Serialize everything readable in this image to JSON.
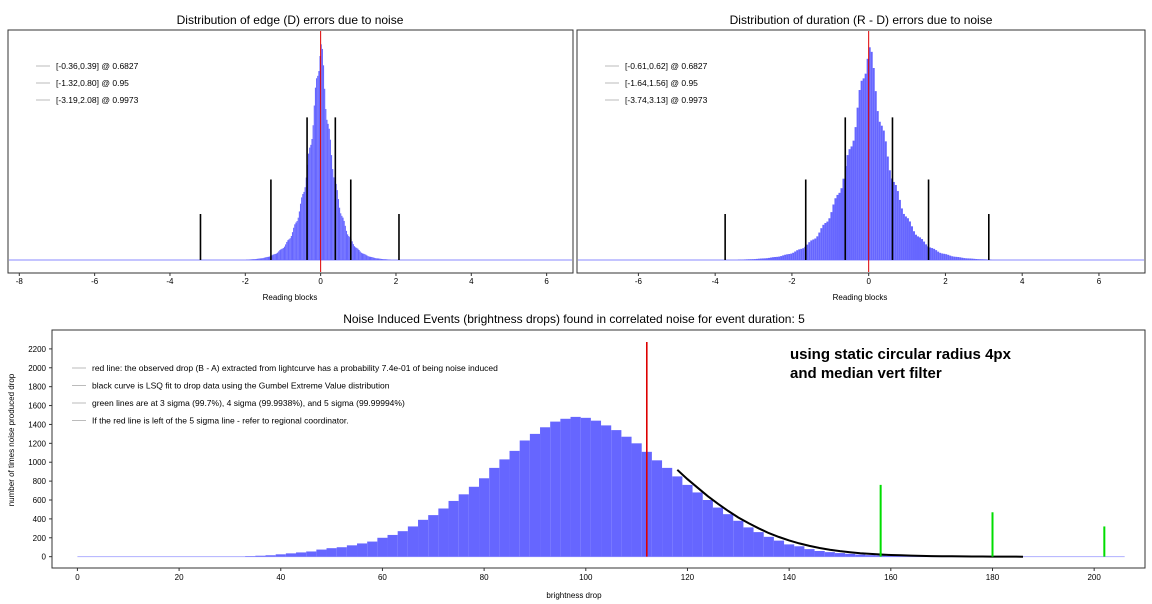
{
  "chart_data": [
    {
      "type": "bar",
      "title": "Distribution of edge (D) errors due to noise",
      "xlabel": "Reading blocks",
      "ylabel": "",
      "xlim": [
        -8.3,
        6.7
      ],
      "xticks": [
        -8,
        -6,
        -4,
        -2,
        0,
        2,
        4,
        6
      ],
      "histogram": {
        "center": 0.0,
        "spread": 0.36,
        "color": "#6666ff"
      },
      "observed_line": 0.0,
      "intervals": [
        {
          "label": "[-0.36,0.39] @ 0.6827",
          "lo": -0.36,
          "hi": 0.39,
          "level": 0.6827
        },
        {
          "label": "[-1.32,0.80] @ 0.95",
          "lo": -1.32,
          "hi": 0.8,
          "level": 0.95
        },
        {
          "label": "[-3.19,2.08] @ 0.9973",
          "lo": -3.19,
          "hi": 2.08,
          "level": 0.9973
        }
      ],
      "legend_position": "top-left"
    },
    {
      "type": "bar",
      "title": "Distribution of duration (R - D) errors due to noise",
      "xlabel": "Reading blocks",
      "ylabel": "",
      "xlim": [
        -7.6,
        7.2
      ],
      "xticks": [
        -6,
        -4,
        -2,
        0,
        2,
        4,
        6
      ],
      "histogram": {
        "center": 0.0,
        "spread": 0.62,
        "color": "#6666ff"
      },
      "observed_line": 0.0,
      "intervals": [
        {
          "label": "[-0.61,0.62] @ 0.6827",
          "lo": -0.61,
          "hi": 0.62,
          "level": 0.6827
        },
        {
          "label": "[-1.64,1.56] @ 0.95",
          "lo": -1.64,
          "hi": 1.56,
          "level": 0.95
        },
        {
          "label": "[-3.74,3.13] @ 0.9973",
          "lo": -3.74,
          "hi": 3.13,
          "level": 0.9973
        }
      ],
      "legend_position": "top-left"
    },
    {
      "type": "bar",
      "title": "Noise Induced Events (brightness drops) found in correlated noise for event duration: 5",
      "xlabel": "brightness drop",
      "ylabel": "number of times noise produced drop",
      "xlim": [
        -5,
        210
      ],
      "ylim": [
        -120,
        2400
      ],
      "xticks": [
        0,
        20,
        40,
        60,
        80,
        100,
        120,
        140,
        160,
        180,
        200
      ],
      "yticks": [
        0,
        200,
        400,
        600,
        800,
        1000,
        1200,
        1400,
        1600,
        1800,
        2000,
        2200
      ],
      "bin_width": 2,
      "bins_x": [
        34,
        36,
        38,
        40,
        42,
        44,
        46,
        48,
        50,
        52,
        54,
        56,
        58,
        60,
        62,
        64,
        66,
        68,
        70,
        72,
        74,
        76,
        78,
        80,
        82,
        84,
        86,
        88,
        90,
        92,
        94,
        96,
        98,
        100,
        102,
        104,
        106,
        108,
        110,
        112,
        114,
        116,
        118,
        120,
        122,
        124,
        126,
        128,
        130,
        132,
        134,
        136,
        138,
        140,
        142,
        144,
        146,
        148,
        150,
        152,
        154,
        156,
        158,
        160,
        162,
        164,
        166,
        168,
        170,
        172,
        174,
        176,
        178,
        180,
        182,
        184,
        186
      ],
      "bins_y": [
        5,
        10,
        15,
        25,
        35,
        45,
        55,
        75,
        90,
        100,
        120,
        140,
        160,
        200,
        230,
        270,
        320,
        390,
        440,
        510,
        590,
        660,
        740,
        830,
        940,
        1030,
        1120,
        1230,
        1300,
        1370,
        1430,
        1460,
        1480,
        1470,
        1440,
        1390,
        1340,
        1270,
        1200,
        1110,
        1020,
        940,
        850,
        760,
        680,
        600,
        520,
        450,
        380,
        310,
        260,
        210,
        170,
        130,
        110,
        80,
        60,
        48,
        38,
        30,
        22,
        16,
        12,
        9,
        7,
        5,
        4,
        3,
        2,
        2,
        1,
        1,
        1,
        1,
        0,
        0,
        0
      ],
      "fit_curve": {
        "label": "black curve is LSQ fit to drop data using the Gumbel Extreme Value distribution",
        "x": [
          118,
          120,
          122,
          124,
          126,
          128,
          130,
          132,
          134,
          136,
          138,
          140,
          142,
          144,
          146,
          148,
          150,
          152,
          154,
          156,
          158,
          160,
          162,
          164,
          166,
          168,
          170,
          172,
          174,
          176,
          178,
          180,
          182,
          184,
          186
        ],
        "y": [
          920,
          820,
          730,
          640,
          560,
          485,
          415,
          355,
          300,
          250,
          208,
          172,
          140,
          114,
          92,
          74,
          59,
          47,
          37,
          29,
          23,
          18,
          14,
          11,
          8,
          6,
          5,
          4,
          3,
          2,
          2,
          1,
          1,
          1,
          0
        ]
      },
      "observed_drop": 112,
      "sigma_lines": [
        {
          "x": 158,
          "height": 760
        },
        {
          "x": 180,
          "height": 470
        },
        {
          "x": 202,
          "height": 320
        }
      ],
      "legend": [
        "red line: the observed drop (B - A) extracted from lightcurve has a probability 7.4e-01 of being noise induced",
        "black curve is LSQ fit to drop data using the Gumbel Extreme Value distribution",
        "green lines are at 3 sigma (99.7%), 4 sigma (99.9938%), and 5 sigma (99.99994%)",
        "If the red line is left of the 5 sigma line - refer to regional coordinator."
      ],
      "annotation": [
        "using static circular radius 4px",
        "and median vert filter"
      ],
      "colors": {
        "bars": "#6666ff",
        "observed": "#dd0000",
        "sigma": "#00dd00",
        "fit": "#000000"
      }
    }
  ]
}
